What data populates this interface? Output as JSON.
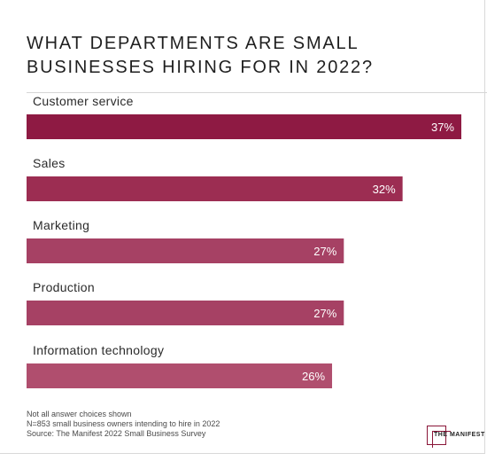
{
  "chart_data": {
    "type": "bar",
    "orientation": "horizontal",
    "title": "WHAT DEPARTMENTS ARE SMALL BUSINESSES HIRING FOR IN 2022?",
    "categories": [
      "Customer service",
      "Sales",
      "Marketing",
      "Production",
      "Information technology"
    ],
    "values": [
      37,
      32,
      27,
      27,
      26
    ],
    "value_labels": [
      "37%",
      "32%",
      "27%",
      "27%",
      "26%"
    ],
    "unit": "%",
    "bar_colors": [
      "#8e1a43",
      "#9c2d52",
      "#a64164",
      "#a64164",
      "#b04e6e"
    ],
    "xlim": [
      0,
      37
    ],
    "grid": false
  },
  "notes": [
    "Not all answer choices shown",
    "N=853 small business owners intending to hire in 2022",
    "Source: The Manifest 2022 Small Business Survey"
  ],
  "logo": {
    "text": "THE MANIFEST",
    "color": "#8a1538"
  }
}
